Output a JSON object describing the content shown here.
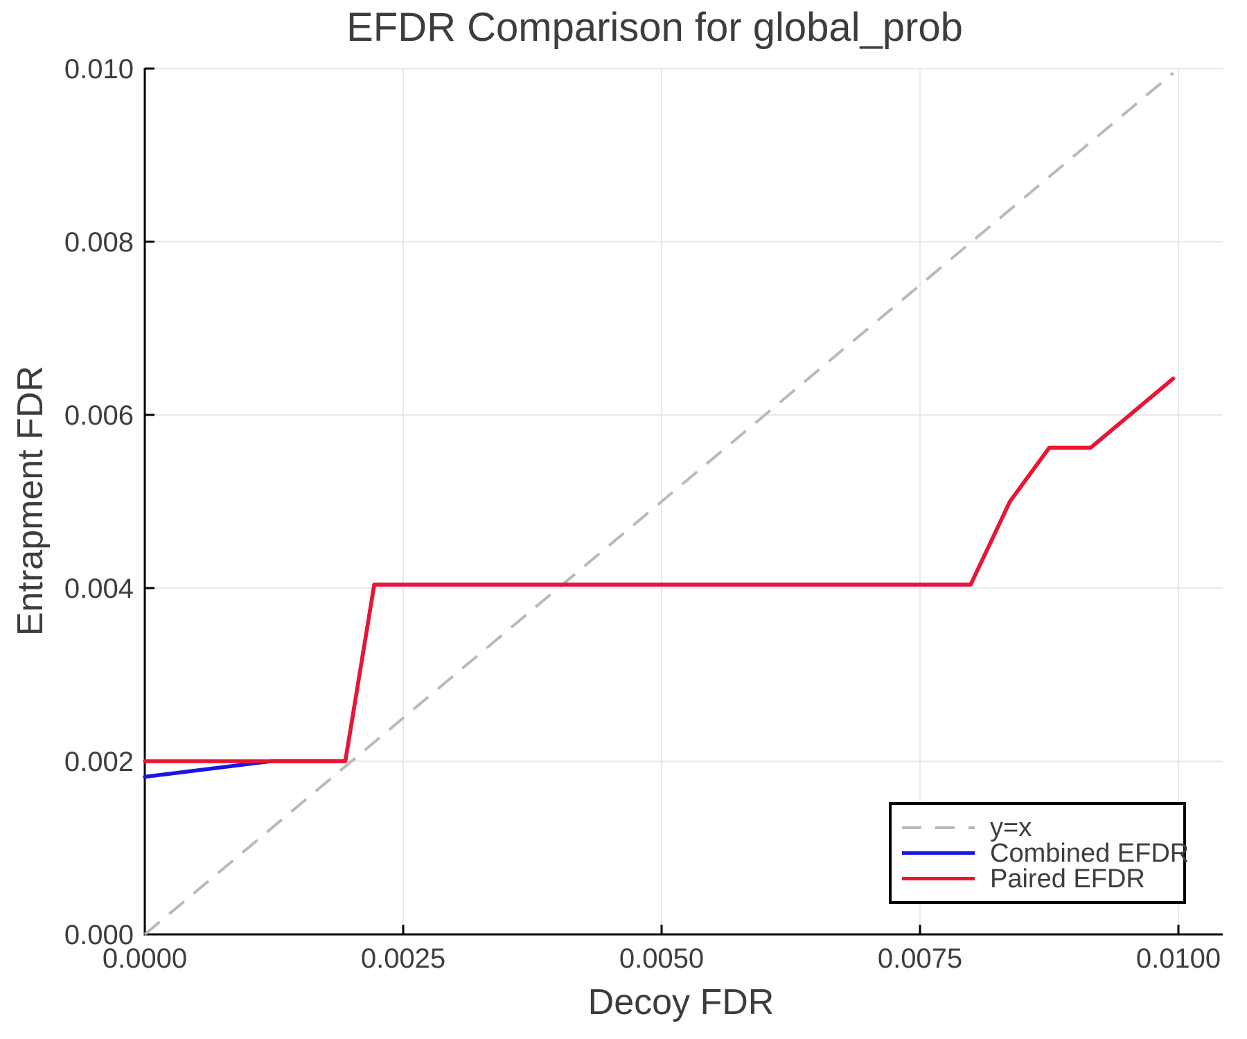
{
  "chart_data": {
    "type": "line",
    "title": "EFDR Comparison for global_prob",
    "xlabel": "Decoy FDR",
    "ylabel": "Entrapment FDR",
    "xlim": [
      0,
      0.01043
    ],
    "ylim": [
      0,
      0.01
    ],
    "grid": true,
    "legend_position": "lower right",
    "xticks": {
      "values": [
        0,
        0.0025,
        0.005,
        0.0075,
        0.01
      ],
      "labels": [
        "0.0000",
        "0.0025",
        "0.0050",
        "0.0075",
        "0.0100"
      ]
    },
    "yticks": {
      "values": [
        0,
        0.002,
        0.004,
        0.006,
        0.008,
        0.01
      ],
      "labels": [
        "0.000",
        "0.002",
        "0.004",
        "0.006",
        "0.008",
        "0.010"
      ]
    },
    "series": [
      {
        "name": "y=x",
        "style": "dashed",
        "color": "#b9b9b9",
        "width": 4,
        "points": [
          [
            0,
            0
          ],
          [
            0.00995,
            0.00995
          ]
        ]
      },
      {
        "name": "Combined EFDR",
        "style": "solid",
        "color": "#1a15e6",
        "width": 5.5,
        "points": [
          [
            0,
            0.00182
          ],
          [
            0.00122,
            0.002
          ],
          [
            0.00194,
            0.002
          ],
          [
            0.00222,
            0.00404
          ],
          [
            0.00799,
            0.00404
          ],
          [
            0.00837,
            0.005
          ],
          [
            0.00875,
            0.00562
          ],
          [
            0.00915,
            0.00562
          ],
          [
            0.00995,
            0.00642
          ]
        ]
      },
      {
        "name": "Paired EFDR",
        "style": "solid",
        "color": "#ed1430",
        "width": 5.5,
        "points": [
          [
            0,
            0.002
          ],
          [
            0.00194,
            0.002
          ],
          [
            0.00222,
            0.00404
          ],
          [
            0.00799,
            0.00404
          ],
          [
            0.00837,
            0.005
          ],
          [
            0.00875,
            0.00562
          ],
          [
            0.00915,
            0.00562
          ],
          [
            0.00995,
            0.00642
          ]
        ]
      }
    ],
    "colors": {
      "spine": "#000000",
      "gridline": "#e8e8e8",
      "text": "#3d3d3d"
    }
  }
}
